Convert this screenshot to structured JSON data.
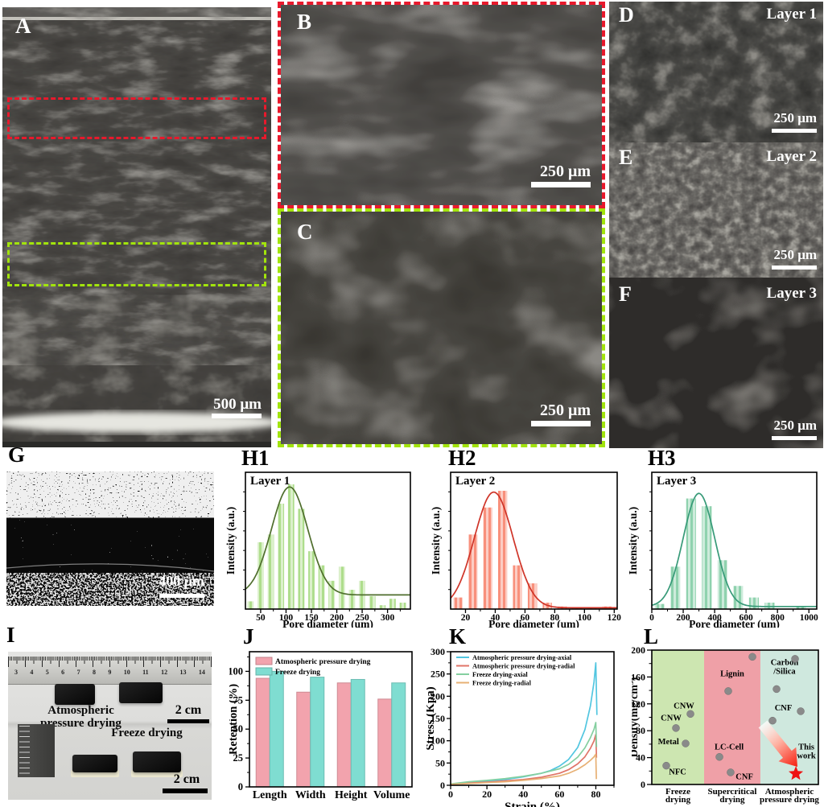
{
  "figure": {
    "accent_colors": {
      "roi_red": "#e8192c",
      "roi_green": "#a2e40c"
    },
    "panels": {
      "A": {
        "label": "A",
        "scalebar": "500 μm"
      },
      "B": {
        "label": "B",
        "scalebar": "250 μm"
      },
      "C": {
        "label": "C",
        "scalebar": "250 μm"
      },
      "D": {
        "label": "D",
        "layer": "Layer 1",
        "scalebar": "250 μm"
      },
      "E": {
        "label": "E",
        "layer": "Layer 2",
        "scalebar": "250 μm"
      },
      "F": {
        "label": "F",
        "layer": "Layer 3",
        "scalebar": "250 μm"
      },
      "G": {
        "label": "G",
        "scalebar": "400 μm"
      },
      "H1": {
        "label": "H1"
      },
      "H2": {
        "label": "H2"
      },
      "H3": {
        "label": "H3"
      },
      "I": {
        "label": "I",
        "ruler_numbers": [
          "3",
          "4",
          "5",
          "6",
          "7",
          "8",
          "9",
          "10",
          "11",
          "12",
          "13",
          "14"
        ],
        "caption_line1": "Atmospheric",
        "caption_line2": "pressure drying",
        "scale_top": "2 cm",
        "caption_bottom": "Freeze drying",
        "scale_bottom": "2 cm"
      },
      "J": {
        "label": "J"
      },
      "K": {
        "label": "K"
      },
      "L": {
        "label": "L"
      }
    }
  },
  "chart_data": [
    {
      "id": "H1",
      "type": "bar",
      "title": "Layer 1",
      "xlabel": "Pore diameter (um)",
      "ylabel": "Intensity (a.u.)",
      "bar_color": "#aedd8c",
      "curve_color": "#4f6e2d",
      "xlim": [
        20,
        345
      ],
      "xticks": [
        50,
        100,
        150,
        200,
        250,
        300
      ],
      "x": [
        30,
        50,
        70,
        90,
        110,
        130,
        150,
        170,
        190,
        210,
        230,
        250,
        270,
        290,
        310,
        330
      ],
      "values": [
        0.06,
        0.52,
        0.58,
        0.82,
        0.97,
        0.78,
        0.45,
        0.34,
        0.22,
        0.33,
        0.15,
        0.22,
        0.1,
        0.03,
        0.08,
        0.05
      ],
      "fit_curve": {
        "mu": 107,
        "sigma": 36,
        "amp": 0.84,
        "baseline": 0.11
      }
    },
    {
      "id": "H2",
      "type": "bar",
      "title": "Layer 2",
      "xlabel": "Pore diameter (um)",
      "ylabel": "Intensity (a.u.)",
      "bar_color": "#f8907c",
      "curve_color": "#cf3428",
      "xlim": [
        10,
        122
      ],
      "xticks": [
        20,
        40,
        60,
        80,
        100,
        120
      ],
      "x": [
        15,
        25,
        35,
        45,
        55,
        65,
        75,
        85,
        95,
        105,
        115
      ],
      "values": [
        0.09,
        0.58,
        0.79,
        0.92,
        0.34,
        0.2,
        0.05,
        0.02,
        0.01,
        0.01,
        0.02
      ],
      "fit_curve": {
        "mu": 39,
        "sigma": 13,
        "amp": 0.9,
        "baseline": 0.01
      }
    },
    {
      "id": "H3",
      "type": "bar",
      "title": "Layer 3",
      "xlabel": "Pore diameter (um)",
      "ylabel": "Intensity (a.u.)",
      "bar_color": "#8fd2ae",
      "curve_color": "#379a78",
      "xlim": [
        0,
        1050
      ],
      "xticks": [
        0,
        200,
        400,
        600,
        800,
        1000
      ],
      "x": [
        50,
        150,
        250,
        350,
        450,
        550,
        650,
        750,
        850,
        950
      ],
      "values": [
        0.04,
        0.33,
        0.86,
        0.8,
        0.38,
        0.18,
        0.09,
        0.05,
        0,
        0.02
      ],
      "fit_curve": {
        "mu": 300,
        "sigma": 100,
        "amp": 0.88,
        "baseline": 0.02
      }
    },
    {
      "id": "J",
      "type": "bar",
      "ylabel": "Retention (%)",
      "categories": [
        "Length",
        "Width",
        "Height",
        "Volume"
      ],
      "yticks": [
        0,
        25,
        50,
        75,
        100
      ],
      "ylim": [
        0,
        117
      ],
      "series": [
        {
          "name": "Atmospheric pressure drying",
          "color": "#f2a3ad",
          "values": [
            94,
            82,
            90,
            76
          ]
        },
        {
          "name": "Freeze drying",
          "color": "#7fddd1",
          "values": [
            100,
            95,
            93,
            90
          ]
        }
      ]
    },
    {
      "id": "K",
      "type": "line",
      "xlabel": "Strain (%)",
      "ylabel": "Stress (Kpa)",
      "xlim": [
        0,
        90
      ],
      "ylim": [
        0,
        300
      ],
      "xticks": [
        0,
        20,
        40,
        60,
        80
      ],
      "yticks": [
        0,
        50,
        100,
        150,
        200,
        250,
        300
      ],
      "series": [
        {
          "name": "Atmospheric pressure drying-axial",
          "color": "#52c6e0",
          "points": [
            [
              0,
              2
            ],
            [
              10,
              6
            ],
            [
              20,
              9
            ],
            [
              30,
              13
            ],
            [
              40,
              19
            ],
            [
              50,
              27
            ],
            [
              55,
              33
            ],
            [
              60,
              43
            ],
            [
              65,
              58
            ],
            [
              70,
              85
            ],
            [
              74,
              125
            ],
            [
              77,
              178
            ],
            [
              79,
              232
            ],
            [
              80,
              275
            ],
            [
              80.6,
              158
            ]
          ]
        },
        {
          "name": "Atmospheric pressure drying-radial",
          "color": "#e07468",
          "points": [
            [
              0,
              2
            ],
            [
              10,
              5
            ],
            [
              20,
              7
            ],
            [
              30,
              10
            ],
            [
              40,
              13
            ],
            [
              50,
              18
            ],
            [
              60,
              27
            ],
            [
              65,
              35
            ],
            [
              70,
              48
            ],
            [
              74,
              64
            ],
            [
              77,
              83
            ],
            [
              79,
              100
            ],
            [
              80,
              114
            ],
            [
              80.4,
              62
            ]
          ]
        },
        {
          "name": "Freeze drying-axial",
          "color": "#85cfa0",
          "points": [
            [
              0,
              3
            ],
            [
              10,
              8
            ],
            [
              20,
              11
            ],
            [
              30,
              15
            ],
            [
              40,
              20
            ],
            [
              50,
              27
            ],
            [
              60,
              37
            ],
            [
              65,
              47
            ],
            [
              70,
              63
            ],
            [
              74,
              84
            ],
            [
              77,
              107
            ],
            [
              79,
              126
            ],
            [
              80,
              141
            ],
            [
              80.4,
              86
            ]
          ]
        },
        {
          "name": "Freeze drying-radial",
          "color": "#e7b074",
          "points": [
            [
              0,
              2
            ],
            [
              10,
              4
            ],
            [
              20,
              6
            ],
            [
              30,
              8
            ],
            [
              40,
              11
            ],
            [
              50,
              15
            ],
            [
              60,
              21
            ],
            [
              65,
              27
            ],
            [
              70,
              36
            ],
            [
              74,
              46
            ],
            [
              77,
              56
            ],
            [
              79,
              64
            ],
            [
              80,
              70
            ],
            [
              80.3,
              14
            ]
          ]
        }
      ]
    },
    {
      "id": "L",
      "type": "scatter",
      "ylabel": "Density(mg/cm3)",
      "ylabel_parts": {
        "pre": "Density(mg/cm",
        "sup": "3",
        "post": ")"
      },
      "yticks": [
        0,
        40,
        80,
        120,
        160,
        200
      ],
      "ylim": [
        0,
        200
      ],
      "point_color": "#8a8a8a",
      "regions": [
        {
          "line1": "Freeze",
          "line2": "drying",
          "color": "#cde6b1",
          "x0": 0,
          "x1": 0.314
        },
        {
          "line1": "Supercritical",
          "line2": "drying",
          "color": "#efa0a7",
          "x0": 0.314,
          "x1": 0.652
        },
        {
          "line1": "Atmospheric",
          "line2": "pressure drying",
          "color": "#cfe8de",
          "x0": 0.652,
          "x1": 1
        }
      ],
      "points": [
        {
          "x": 0.087,
          "y": 28,
          "label": "NFC",
          "lx": 0.155,
          "ly": 15
        },
        {
          "x": 0.203,
          "y": 61,
          "label": "Metal",
          "lx": 0.1,
          "ly": 60
        },
        {
          "x": 0.145,
          "y": 84,
          "label": "CNW",
          "lx": 0.116,
          "ly": 95
        },
        {
          "x": 0.232,
          "y": 105,
          "label": "CNW",
          "lx": 0.193,
          "ly": 113
        },
        {
          "x": 0.406,
          "y": 41,
          "label": "LC-Cell",
          "lx": 0.464,
          "ly": 52
        },
        {
          "x": 0.473,
          "y": 18,
          "label": "CNF",
          "lx": 0.556,
          "ly": 8
        },
        {
          "x": 0.459,
          "y": 139,
          "label": "Lignin",
          "lx": 0.483,
          "ly": 161
        },
        {
          "x": 0.604,
          "y": 190
        },
        {
          "x": 0.725,
          "y": 95
        },
        {
          "x": 0.749,
          "y": 142,
          "label_lines": [
            "Carbon",
            "/Silica"
          ],
          "lx": 0.797,
          "ly": 178
        },
        {
          "x": 0.894,
          "y": 109,
          "label": "CNF",
          "lx": 0.79,
          "ly": 110
        },
        {
          "x": 0.86,
          "y": 187
        }
      ],
      "star": {
        "x": 0.865,
        "y": 16,
        "color": "#ee1111",
        "label_lines": [
          "This",
          "work"
        ],
        "lx": 0.928,
        "ly": 52
      }
    }
  ]
}
